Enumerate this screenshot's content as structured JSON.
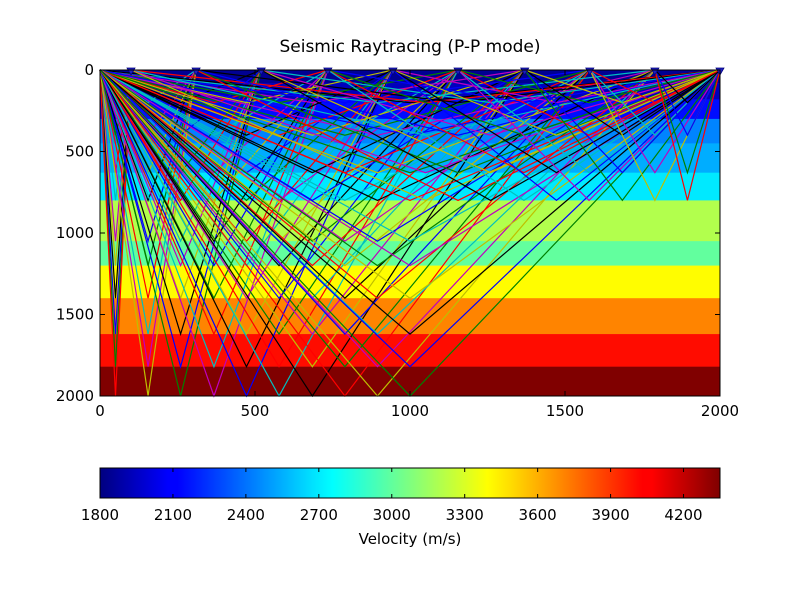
{
  "chart_data": [
    {
      "type": "heatmap",
      "title": "Seismic Raytracing (P-P mode)",
      "xlabel": "",
      "ylabel": "",
      "xlim": [
        0,
        2000
      ],
      "ylim": [
        2000,
        0
      ],
      "x_ticks": [
        0,
        500,
        1000,
        1500,
        2000
      ],
      "y_ticks": [
        0,
        500,
        1000,
        1500,
        2000
      ],
      "grid": false,
      "layers": [
        {
          "top": 0,
          "bottom": 80,
          "velocity": 1850
        },
        {
          "top": 80,
          "bottom": 180,
          "velocity": 1950
        },
        {
          "top": 180,
          "bottom": 300,
          "velocity": 2150
        },
        {
          "top": 300,
          "bottom": 450,
          "velocity": 2450
        },
        {
          "top": 450,
          "bottom": 630,
          "velocity": 2550
        },
        {
          "top": 630,
          "bottom": 800,
          "velocity": 2700
        },
        {
          "top": 800,
          "bottom": 1050,
          "velocity": 3200
        },
        {
          "top": 1050,
          "bottom": 1200,
          "velocity": 3000
        },
        {
          "top": 1200,
          "bottom": 1400,
          "velocity": 3400
        },
        {
          "top": 1400,
          "bottom": 1620,
          "velocity": 3700
        },
        {
          "top": 1620,
          "bottom": 1820,
          "velocity": 4000
        },
        {
          "top": 1820,
          "bottom": 2000,
          "velocity": 4350
        }
      ],
      "receivers_x": [
        100,
        310,
        520,
        735,
        945,
        1155,
        1370,
        1580,
        1790,
        2000
      ],
      "source_x": 0,
      "right_source_x": 2000,
      "ray_colors": [
        "#0000ff",
        "#008000",
        "#ff0000",
        "#00bfbf",
        "#bf00bf",
        "#bfbf00",
        "#000000"
      ],
      "ray_depths": [
        200,
        400,
        630,
        800,
        1050,
        1200,
        1400,
        1620,
        1820,
        2000
      ]
    },
    {
      "type": "colorbar",
      "label": "Velocity (m/s)",
      "vmin": 1800,
      "vmax": 4350,
      "ticks": [
        1800,
        2100,
        2400,
        2700,
        3000,
        3300,
        3600,
        3900,
        4200
      ],
      "colormap": "jet"
    }
  ]
}
